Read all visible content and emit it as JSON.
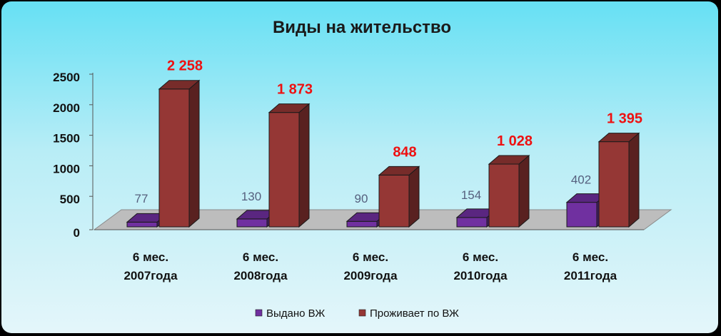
{
  "chart_data": {
    "type": "bar",
    "title": "Виды на жительство",
    "categories": [
      [
        "6 мес.",
        "2007года"
      ],
      [
        "6 мес.",
        "2008года"
      ],
      [
        "6 мес.",
        "2009года"
      ],
      [
        "6 мес.",
        "2010года"
      ],
      [
        "6 мес.",
        "2011года"
      ]
    ],
    "series": [
      {
        "name": "Выдано ВЖ",
        "values": [
          77,
          130,
          90,
          154,
          402
        ],
        "labels": [
          "77",
          "130",
          "90",
          "154",
          "402"
        ],
        "color": "#7030a0"
      },
      {
        "name": "Проживает по ВЖ",
        "values": [
          2258,
          1873,
          848,
          1028,
          1395
        ],
        "labels": [
          "2 258",
          "1 873",
          "848",
          "1 028",
          "1 395"
        ],
        "color": "#953735"
      }
    ],
    "yticks": [
      "0",
      "500",
      "1000",
      "1500",
      "2000",
      "2500"
    ],
    "ylim": [
      0,
      2500
    ],
    "legend_position": "bottom",
    "three_d": true
  }
}
